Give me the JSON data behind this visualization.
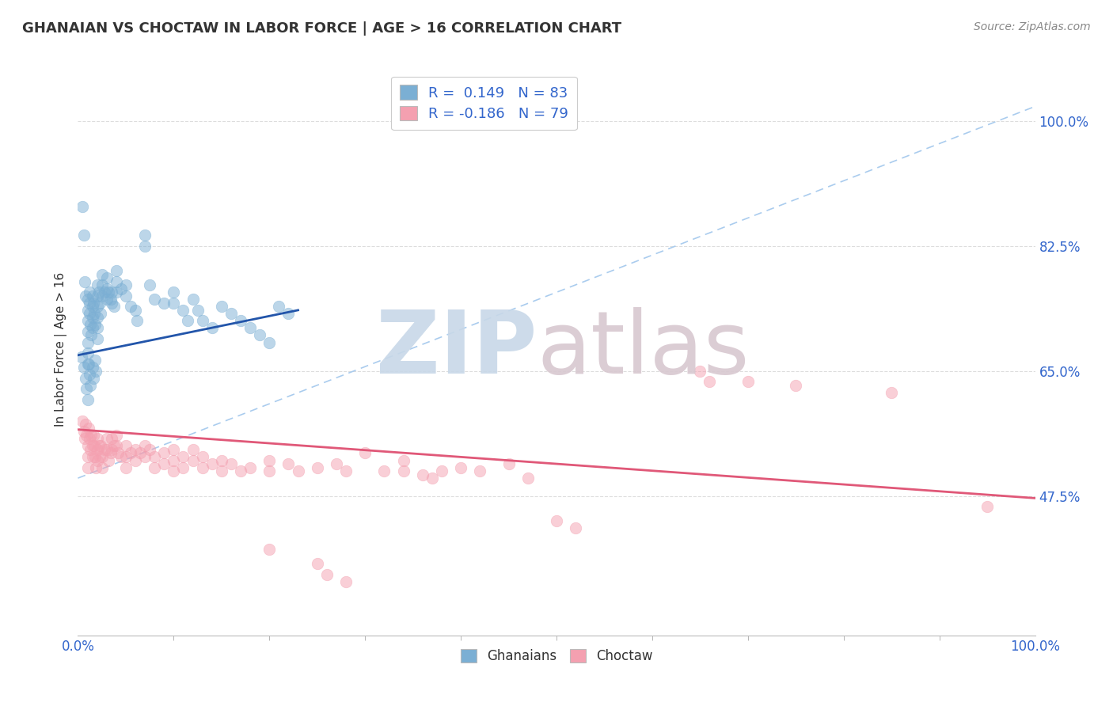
{
  "title": "GHANAIAN VS CHOCTAW IN LABOR FORCE | AGE > 16 CORRELATION CHART",
  "source_text": "Source: ZipAtlas.com",
  "ylabel": "In Labor Force | Age > 16",
  "ytick_labels": [
    "47.5%",
    "65.0%",
    "82.5%",
    "100.0%"
  ],
  "ytick_values": [
    0.475,
    0.65,
    0.825,
    1.0
  ],
  "xlim": [
    0.0,
    1.0
  ],
  "ylim": [
    0.28,
    1.08
  ],
  "ghanaian_color": "#7BAFD4",
  "choctaw_color": "#F4A0B0",
  "trend_ghanaian_color": "#2255AA",
  "trend_choctaw_color": "#E05878",
  "trend_dashed_color": "#AACCEE",
  "ghanaian_trend_x": [
    0.0,
    0.23
  ],
  "ghanaian_trend_y": [
    0.672,
    0.735
  ],
  "choctaw_trend_x": [
    0.0,
    1.0
  ],
  "choctaw_trend_y": [
    0.568,
    0.472
  ],
  "dashed_trend_x": [
    0.0,
    1.0
  ],
  "dashed_trend_y": [
    0.5,
    1.02
  ],
  "background_color": "#FFFFFF",
  "grid_color": "#DDDDDD",
  "watermark_zip_color": "#C8D8E8",
  "watermark_atlas_color": "#D8C8D0",
  "ghanaian_points": [
    [
      0.005,
      0.88
    ],
    [
      0.006,
      0.84
    ],
    [
      0.007,
      0.775
    ],
    [
      0.008,
      0.755
    ],
    [
      0.01,
      0.75
    ],
    [
      0.01,
      0.735
    ],
    [
      0.01,
      0.72
    ],
    [
      0.01,
      0.705
    ],
    [
      0.01,
      0.69
    ],
    [
      0.01,
      0.675
    ],
    [
      0.01,
      0.66
    ],
    [
      0.012,
      0.76
    ],
    [
      0.012,
      0.745
    ],
    [
      0.012,
      0.73
    ],
    [
      0.013,
      0.715
    ],
    [
      0.014,
      0.7
    ],
    [
      0.015,
      0.755
    ],
    [
      0.015,
      0.74
    ],
    [
      0.015,
      0.725
    ],
    [
      0.015,
      0.71
    ],
    [
      0.016,
      0.745
    ],
    [
      0.017,
      0.73
    ],
    [
      0.018,
      0.715
    ],
    [
      0.02,
      0.77
    ],
    [
      0.02,
      0.755
    ],
    [
      0.02,
      0.74
    ],
    [
      0.02,
      0.725
    ],
    [
      0.02,
      0.71
    ],
    [
      0.02,
      0.695
    ],
    [
      0.022,
      0.76
    ],
    [
      0.023,
      0.745
    ],
    [
      0.024,
      0.73
    ],
    [
      0.025,
      0.785
    ],
    [
      0.025,
      0.77
    ],
    [
      0.025,
      0.755
    ],
    [
      0.028,
      0.76
    ],
    [
      0.03,
      0.78
    ],
    [
      0.03,
      0.765
    ],
    [
      0.03,
      0.75
    ],
    [
      0.032,
      0.76
    ],
    [
      0.034,
      0.75
    ],
    [
      0.035,
      0.76
    ],
    [
      0.035,
      0.745
    ],
    [
      0.038,
      0.74
    ],
    [
      0.04,
      0.79
    ],
    [
      0.04,
      0.775
    ],
    [
      0.04,
      0.76
    ],
    [
      0.045,
      0.765
    ],
    [
      0.05,
      0.77
    ],
    [
      0.05,
      0.755
    ],
    [
      0.055,
      0.74
    ],
    [
      0.06,
      0.735
    ],
    [
      0.062,
      0.72
    ],
    [
      0.07,
      0.84
    ],
    [
      0.07,
      0.825
    ],
    [
      0.075,
      0.77
    ],
    [
      0.08,
      0.75
    ],
    [
      0.09,
      0.745
    ],
    [
      0.1,
      0.76
    ],
    [
      0.1,
      0.745
    ],
    [
      0.11,
      0.735
    ],
    [
      0.115,
      0.72
    ],
    [
      0.12,
      0.75
    ],
    [
      0.125,
      0.735
    ],
    [
      0.13,
      0.72
    ],
    [
      0.14,
      0.71
    ],
    [
      0.15,
      0.74
    ],
    [
      0.16,
      0.73
    ],
    [
      0.17,
      0.72
    ],
    [
      0.18,
      0.71
    ],
    [
      0.19,
      0.7
    ],
    [
      0.2,
      0.69
    ],
    [
      0.21,
      0.74
    ],
    [
      0.22,
      0.73
    ],
    [
      0.004,
      0.67
    ],
    [
      0.006,
      0.655
    ],
    [
      0.008,
      0.64
    ],
    [
      0.009,
      0.625
    ],
    [
      0.01,
      0.61
    ],
    [
      0.011,
      0.66
    ],
    [
      0.012,
      0.645
    ],
    [
      0.013,
      0.63
    ],
    [
      0.015,
      0.655
    ],
    [
      0.016,
      0.64
    ],
    [
      0.018,
      0.665
    ],
    [
      0.019,
      0.65
    ]
  ],
  "choctaw_points": [
    [
      0.005,
      0.58
    ],
    [
      0.006,
      0.565
    ],
    [
      0.007,
      0.555
    ],
    [
      0.008,
      0.575
    ],
    [
      0.009,
      0.56
    ],
    [
      0.01,
      0.545
    ],
    [
      0.01,
      0.53
    ],
    [
      0.01,
      0.515
    ],
    [
      0.011,
      0.57
    ],
    [
      0.012,
      0.555
    ],
    [
      0.013,
      0.54
    ],
    [
      0.014,
      0.56
    ],
    [
      0.015,
      0.545
    ],
    [
      0.015,
      0.53
    ],
    [
      0.016,
      0.56
    ],
    [
      0.017,
      0.545
    ],
    [
      0.018,
      0.53
    ],
    [
      0.019,
      0.515
    ],
    [
      0.02,
      0.555
    ],
    [
      0.02,
      0.54
    ],
    [
      0.02,
      0.525
    ],
    [
      0.022,
      0.545
    ],
    [
      0.023,
      0.53
    ],
    [
      0.024,
      0.545
    ],
    [
      0.025,
      0.53
    ],
    [
      0.025,
      0.515
    ],
    [
      0.028,
      0.54
    ],
    [
      0.03,
      0.555
    ],
    [
      0.03,
      0.54
    ],
    [
      0.032,
      0.525
    ],
    [
      0.034,
      0.535
    ],
    [
      0.035,
      0.555
    ],
    [
      0.035,
      0.54
    ],
    [
      0.038,
      0.545
    ],
    [
      0.04,
      0.56
    ],
    [
      0.04,
      0.545
    ],
    [
      0.042,
      0.535
    ],
    [
      0.045,
      0.53
    ],
    [
      0.05,
      0.545
    ],
    [
      0.05,
      0.53
    ],
    [
      0.05,
      0.515
    ],
    [
      0.055,
      0.535
    ],
    [
      0.06,
      0.54
    ],
    [
      0.06,
      0.525
    ],
    [
      0.065,
      0.535
    ],
    [
      0.07,
      0.545
    ],
    [
      0.07,
      0.53
    ],
    [
      0.075,
      0.54
    ],
    [
      0.08,
      0.53
    ],
    [
      0.08,
      0.515
    ],
    [
      0.09,
      0.535
    ],
    [
      0.09,
      0.52
    ],
    [
      0.1,
      0.54
    ],
    [
      0.1,
      0.525
    ],
    [
      0.1,
      0.51
    ],
    [
      0.11,
      0.53
    ],
    [
      0.11,
      0.515
    ],
    [
      0.12,
      0.54
    ],
    [
      0.12,
      0.525
    ],
    [
      0.13,
      0.53
    ],
    [
      0.13,
      0.515
    ],
    [
      0.14,
      0.52
    ],
    [
      0.15,
      0.525
    ],
    [
      0.15,
      0.51
    ],
    [
      0.16,
      0.52
    ],
    [
      0.17,
      0.51
    ],
    [
      0.18,
      0.515
    ],
    [
      0.2,
      0.525
    ],
    [
      0.2,
      0.51
    ],
    [
      0.22,
      0.52
    ],
    [
      0.23,
      0.51
    ],
    [
      0.25,
      0.515
    ],
    [
      0.27,
      0.52
    ],
    [
      0.28,
      0.51
    ],
    [
      0.3,
      0.535
    ],
    [
      0.32,
      0.51
    ],
    [
      0.34,
      0.525
    ],
    [
      0.34,
      0.51
    ],
    [
      0.36,
      0.505
    ],
    [
      0.37,
      0.5
    ],
    [
      0.38,
      0.51
    ],
    [
      0.4,
      0.515
    ],
    [
      0.42,
      0.51
    ],
    [
      0.45,
      0.52
    ],
    [
      0.47,
      0.5
    ],
    [
      0.65,
      0.65
    ],
    [
      0.66,
      0.635
    ],
    [
      0.7,
      0.635
    ],
    [
      0.75,
      0.63
    ],
    [
      0.85,
      0.62
    ],
    [
      0.2,
      0.4
    ],
    [
      0.25,
      0.38
    ],
    [
      0.26,
      0.365
    ],
    [
      0.28,
      0.355
    ],
    [
      0.5,
      0.44
    ],
    [
      0.52,
      0.43
    ],
    [
      0.95,
      0.46
    ]
  ]
}
